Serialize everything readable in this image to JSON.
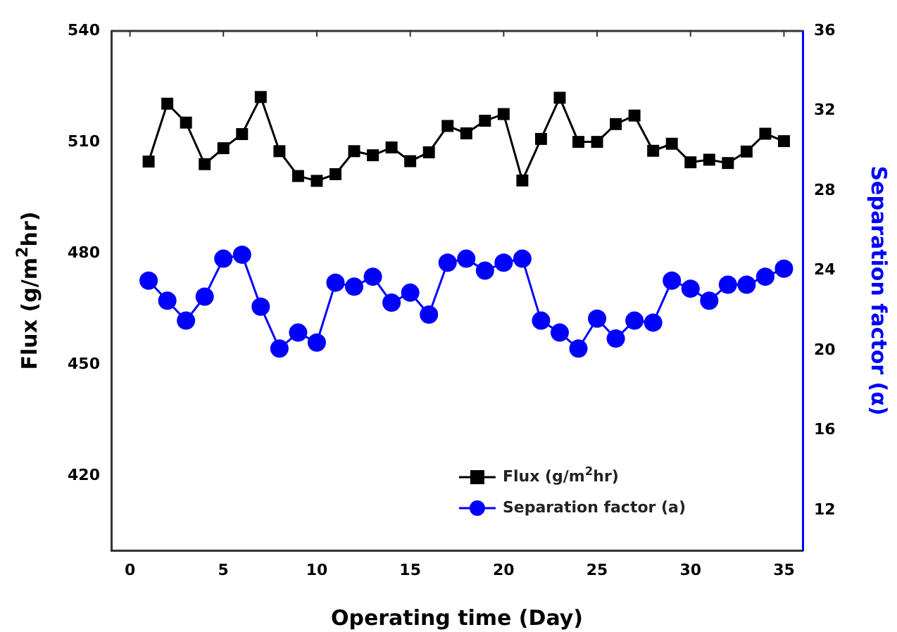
{
  "chart_data": {
    "type": "line",
    "x": [
      1,
      2,
      3,
      4,
      5,
      6,
      7,
      8,
      9,
      10,
      11,
      12,
      13,
      14,
      15,
      16,
      17,
      18,
      19,
      20,
      21,
      22,
      23,
      24,
      25,
      26,
      27,
      28,
      29,
      30,
      31,
      32,
      33,
      34,
      35
    ],
    "xlabel": "Operating time (Day)",
    "ylabel": "Flux (g/m$^{2}$hr)",
    "y2label": "Separation factor (α)",
    "xlim": [
      -1,
      36
    ],
    "xticks": [
      0,
      5,
      10,
      15,
      20,
      25,
      30,
      35
    ],
    "ylim": [
      400,
      540
    ],
    "yticks": [
      420,
      450,
      480,
      510,
      540
    ],
    "y2lim": [
      10,
      36
    ],
    "y2ticks": [
      12,
      16,
      20,
      24,
      28,
      32,
      36
    ],
    "grid": false,
    "legend": "bottom right",
    "line_style": "solid",
    "series": [
      {
        "name": "Flux (g/m$^{2}$hr)",
        "color": "#000000",
        "marker": "square",
        "values": [
          504.8,
          520.4,
          515.3,
          504.1,
          508.4,
          512.2,
          522.2,
          507.6,
          500.9,
          499.6,
          501.4,
          507.6,
          506.5,
          508.6,
          504.9,
          507.3,
          514.4,
          512.4,
          515.8,
          517.6,
          499.7,
          510.9,
          522.0,
          510.1,
          510.1,
          514.9,
          517.2,
          507.7,
          509.6,
          504.6,
          505.3,
          504.4,
          507.5,
          512.3,
          510.3
        ]
      },
      {
        "name": "Separation factor (a)",
        "color": "#0000ff",
        "marker": "circle",
        "axis": "y2",
        "values": [
          23.5,
          22.5,
          21.5,
          22.7,
          24.6,
          24.8,
          22.2,
          20.1,
          20.9,
          20.4,
          23.4,
          23.2,
          23.7,
          22.4,
          22.9,
          21.8,
          24.4,
          24.6,
          24.0,
          24.4,
          24.6,
          21.5,
          20.9,
          20.1,
          21.6,
          20.6,
          21.5,
          21.4,
          23.5,
          23.1,
          22.5,
          23.3,
          23.3,
          23.7,
          24.1
        ]
      }
    ]
  }
}
